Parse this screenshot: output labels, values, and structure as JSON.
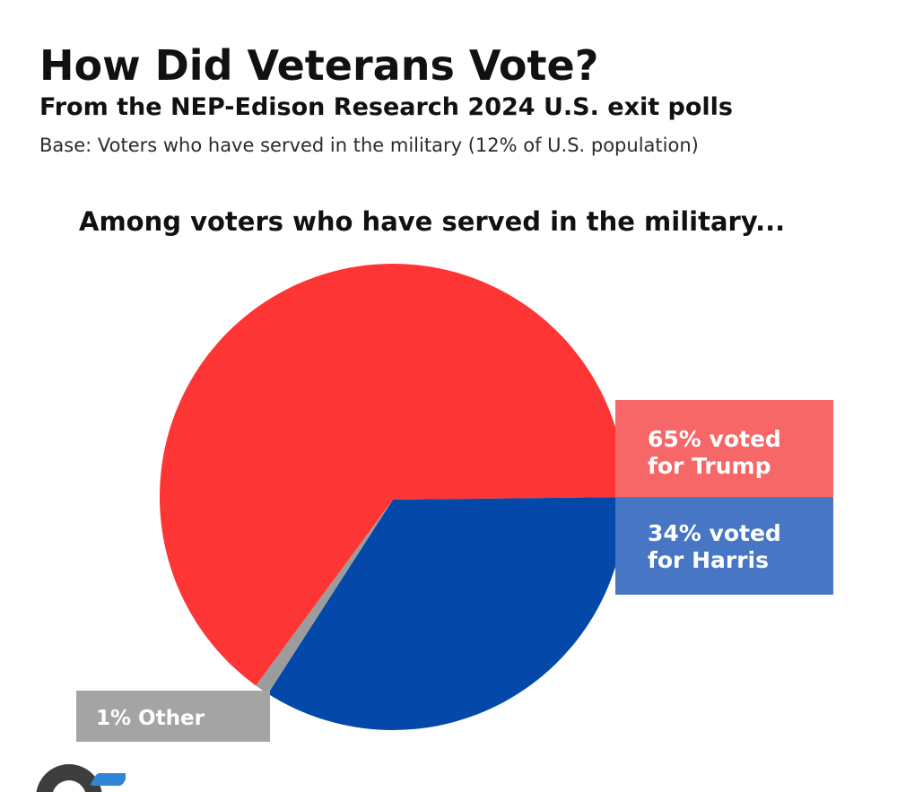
{
  "header": {
    "title": "How Did Veterans Vote?",
    "subtitle": "From the NEP-Edison Research 2024 U.S. exit polls",
    "base": "Base: Voters who have served in the military (12% of U.S. population)"
  },
  "chart_data": {
    "type": "pie",
    "title": "Among voters who have served in the military...",
    "slices": [
      {
        "key": "trump",
        "value": 65,
        "color": "#fd3535",
        "label_lines": [
          "65% voted",
          "for Trump"
        ],
        "label_bg": "#f76767"
      },
      {
        "key": "harris",
        "value": 34,
        "color": "#0449aa",
        "label_lines": [
          "34% voted",
          "for Harris"
        ],
        "label_bg": "#4777c4"
      },
      {
        "key": "other",
        "value": 1,
        "color": "#9c9c9c",
        "label_lines": [
          "1% Other"
        ],
        "label_bg": "#a4a4a4"
      }
    ]
  },
  "logo": {
    "name": "logo-icon"
  }
}
